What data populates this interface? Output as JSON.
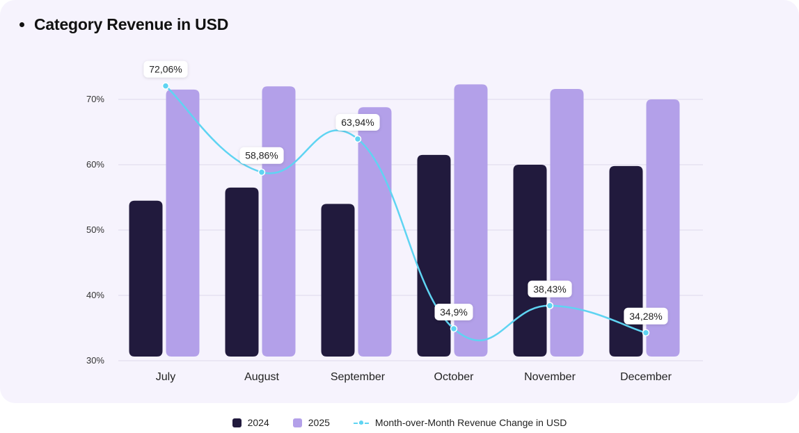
{
  "title": "Category Revenue in USD",
  "chart_data": {
    "type": "bar",
    "title": "Category Revenue in USD",
    "categories": [
      "July",
      "August",
      "September",
      "October",
      "November",
      "December"
    ],
    "ylim": [
      30,
      70
    ],
    "yticks": [
      "30%",
      "40%",
      "50%",
      "60%",
      "70%"
    ],
    "ytick_values": [
      30,
      40,
      50,
      60,
      70
    ],
    "series": [
      {
        "name": "2024",
        "type": "bar",
        "color": "#211a3d",
        "values": [
          54.5,
          56.5,
          54.0,
          61.5,
          60.0,
          59.8
        ]
      },
      {
        "name": "2025",
        "type": "bar",
        "color": "#b3a0e9",
        "values": [
          71.5,
          72.0,
          68.8,
          72.3,
          71.6,
          70.0
        ]
      },
      {
        "name": "Month-over-Month Revenue Change in USD",
        "type": "line",
        "color": "#5fd4f2",
        "values": [
          72.06,
          58.86,
          63.94,
          34.9,
          38.43,
          34.28
        ],
        "labels": [
          "72,06%",
          "58,86%",
          "63,94%",
          "34,9%",
          "38,43%",
          "34,28%"
        ]
      }
    ],
    "legend": "bottom-center",
    "grid": true
  },
  "legend": {
    "items": [
      "2024",
      "2025",
      "Month-over-Month Revenue Change in USD"
    ]
  }
}
